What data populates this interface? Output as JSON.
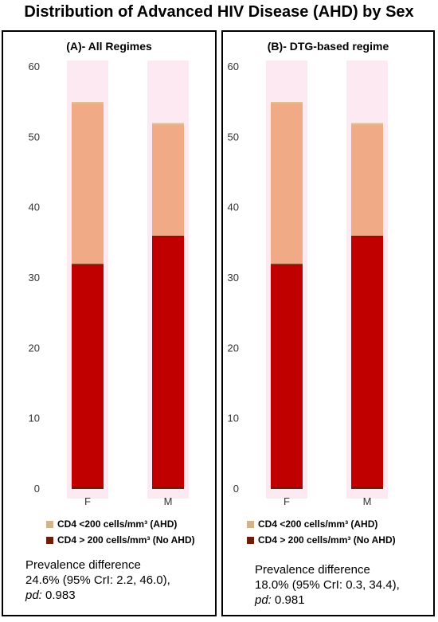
{
  "title": "Distribution of Advanced HIV Disease (AHD) by Sex",
  "colors": {
    "ahd": "#F0AA86",
    "no_ahd": "#C00000",
    "legend_ahd": "#D2B48C",
    "legend_no_ahd": "#6B1E0A"
  },
  "legend": [
    {
      "label": "CD4 <200 cells/mm³ (AHD)",
      "color": "#D2B48C"
    },
    {
      "label": "CD4 > 200 cells/mm³ (No AHD)",
      "color": "#6B1E0A"
    }
  ],
  "chart_data": [
    {
      "type": "bar",
      "stacked": true,
      "title": "(A)- All Regimes",
      "categories": [
        "F",
        "M"
      ],
      "series": [
        {
          "name": "CD4 > 200 cells/mm³ (No AHD)",
          "values": [
            32,
            36
          ]
        },
        {
          "name": "CD4 <200 cells/mm³ (AHD)",
          "values": [
            23,
            16
          ]
        }
      ],
      "ylim": [
        0,
        60
      ],
      "yticks": [
        0,
        10,
        20,
        30,
        40,
        50,
        60
      ],
      "prevalence_label": "Prevalence difference",
      "prevalence_value": "24.6% (95% CrI: 2.2, 46.0),",
      "pd_label": "pd:",
      "pd_value": "0.983"
    },
    {
      "type": "bar",
      "stacked": true,
      "title": "(B)- DTG-based regime",
      "categories": [
        "F",
        "M"
      ],
      "series": [
        {
          "name": "CD4 > 200 cells/mm³ (No AHD)",
          "values": [
            32,
            36
          ]
        },
        {
          "name": "CD4 <200 cells/mm³ (AHD)",
          "values": [
            23,
            16
          ]
        }
      ],
      "ylim": [
        0,
        60
      ],
      "yticks": [
        0,
        10,
        20,
        30,
        40,
        50,
        60
      ],
      "prevalence_label": "Prevalence difference",
      "prevalence_value": "18.0% (95% CrI: 0.3, 34.4),",
      "pd_label": "pd:",
      "pd_value": "0.981"
    }
  ]
}
